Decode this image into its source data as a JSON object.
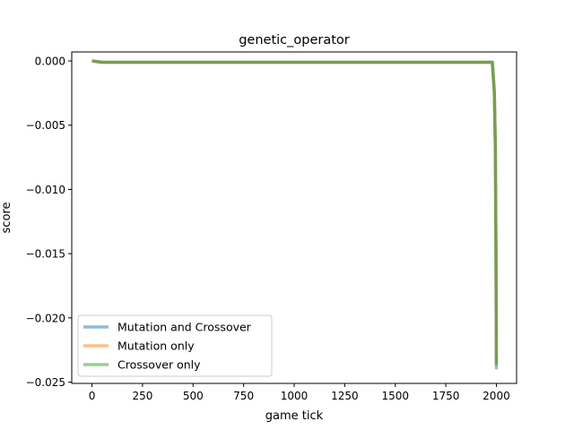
{
  "chart_data": {
    "type": "line",
    "title": "genetic_operator",
    "xlabel": "game tick",
    "ylabel": "score",
    "xlim": [
      -100,
      2100
    ],
    "ylim": [
      -0.0251,
      0.0007
    ],
    "xticks": [
      0,
      250,
      500,
      750,
      1000,
      1250,
      1500,
      1750,
      2000
    ],
    "xtick_labels": [
      "0",
      "250",
      "500",
      "750",
      "1000",
      "1250",
      "1500",
      "1750",
      "2000"
    ],
    "yticks": [
      0.0,
      -0.005,
      -0.01,
      -0.015,
      -0.02,
      -0.025
    ],
    "ytick_labels": [
      "0.000",
      "−0.005",
      "−0.010",
      "−0.015",
      "−0.020",
      "−0.025"
    ],
    "grid": false,
    "legend_position": "lower-left",
    "series": [
      {
        "name": "Mutation and Crossover",
        "color": "#1f77b4",
        "x": [
          0,
          50,
          250,
          500,
          1000,
          1500,
          1980,
          1990,
          1995,
          1998,
          2000
        ],
        "y": [
          0.0,
          -0.0001,
          -0.0001,
          -0.0001,
          -0.0001,
          -0.0001,
          -0.0001,
          -0.0025,
          -0.007,
          -0.015,
          -0.024
        ]
      },
      {
        "name": "Mutation only",
        "color": "#ff7f0e",
        "x": [
          0,
          50,
          250,
          500,
          1000,
          1500,
          1980,
          1990,
          1995,
          1998,
          2000
        ],
        "y": [
          0.0,
          -0.0001,
          -0.0001,
          -0.0001,
          -0.0001,
          -0.0001,
          -0.0001,
          -0.0025,
          -0.0068,
          -0.0148,
          -0.0235
        ]
      },
      {
        "name": "Crossover only",
        "color": "#2ca02c",
        "x": [
          0,
          50,
          250,
          500,
          1000,
          1500,
          1980,
          1990,
          1995,
          1998,
          2000
        ],
        "y": [
          0.0,
          -0.0001,
          -0.0001,
          -0.0001,
          -0.0001,
          -0.0001,
          -0.0001,
          -0.0024,
          -0.0066,
          -0.0145,
          -0.0237
        ]
      }
    ]
  }
}
